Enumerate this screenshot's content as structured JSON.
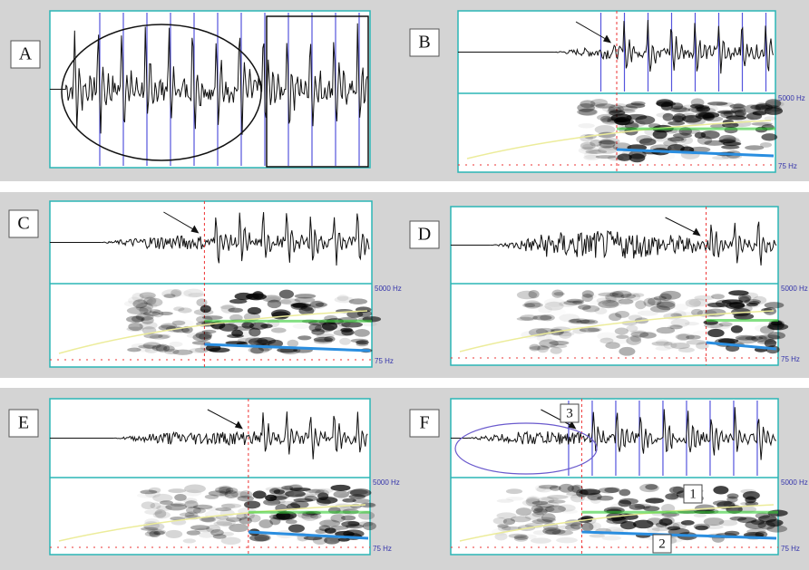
{
  "panels": [
    {
      "label": "A"
    },
    {
      "label": "B",
      "top_label": "5000 Hz",
      "bottom_label": "75 Hz"
    },
    {
      "label": "C",
      "top_label": "5000 Hz",
      "bottom_label": "75 Hz"
    },
    {
      "label": "D",
      "top_label": "5000 Hz",
      "bottom_label": "75 Hz"
    },
    {
      "label": "E",
      "top_label": "5000 Hz",
      "bottom_label": "75 Hz"
    },
    {
      "label": "F",
      "top_label": "5000 Hz",
      "bottom_label": "75 Hz"
    }
  ],
  "callouts": [
    "1",
    "2",
    "3"
  ]
}
